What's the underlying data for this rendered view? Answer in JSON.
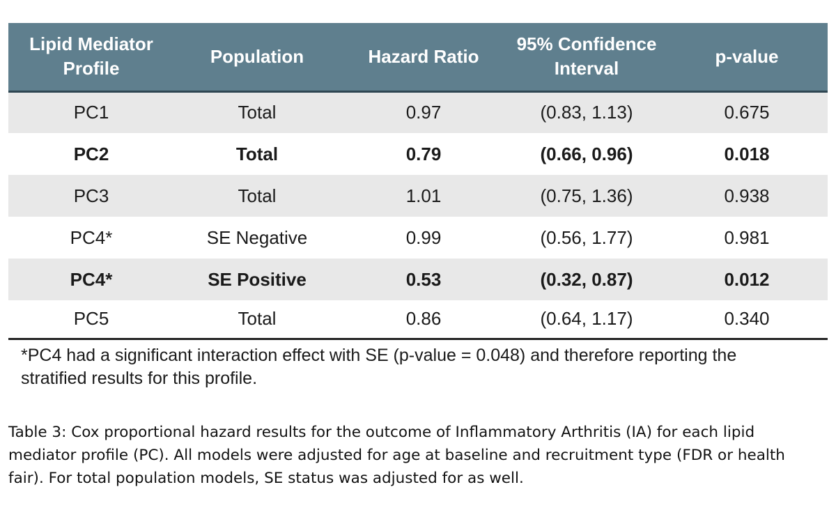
{
  "table": {
    "headers": [
      {
        "line1": "Lipid Mediator",
        "line2": "Profile"
      },
      {
        "line1": "Population",
        "line2": ""
      },
      {
        "line1": "Hazard Ratio",
        "line2": ""
      },
      {
        "line1": "95% Confidence",
        "line2": "Interval"
      },
      {
        "line1": "p-value",
        "line2": ""
      }
    ],
    "rows": [
      {
        "profile": "PC1",
        "population": "Total",
        "hazard_ratio": "0.97",
        "ci": "(0.83, 1.13)",
        "p_value": "0.675",
        "bold": false,
        "shaded": true
      },
      {
        "profile": "PC2",
        "population": "Total",
        "hazard_ratio": "0.79",
        "ci": "(0.66, 0.96)",
        "p_value": "0.018",
        "bold": true,
        "shaded": false
      },
      {
        "profile": "PC3",
        "population": "Total",
        "hazard_ratio": "1.01",
        "ci": "(0.75, 1.36)",
        "p_value": "0.938",
        "bold": false,
        "shaded": true
      },
      {
        "profile": "PC4*",
        "population": "SE Negative",
        "hazard_ratio": "0.99",
        "ci": "(0.56, 1.77)",
        "p_value": "0.981",
        "bold": false,
        "shaded": false
      },
      {
        "profile": "PC4*",
        "population": "SE Positive",
        "hazard_ratio": "0.53",
        "ci": "(0.32, 0.87)",
        "p_value": "0.012",
        "bold": true,
        "shaded": true
      },
      {
        "profile": "PC5",
        "population": "Total",
        "hazard_ratio": "0.86",
        "ci": "(0.64, 1.17)",
        "p_value": "0.340",
        "bold": false,
        "shaded": false
      }
    ]
  },
  "footnote": {
    "line1": "*PC4 had a significant interaction effect with SE (p-value = 0.048) and therefore reporting the",
    "line2": "stratified results for this profile."
  },
  "caption": {
    "line1": "Table 3: Cox proportional hazard results for the outcome of Inflammatory Arthritis (IA) for each lipid",
    "line2": "mediator profile (PC). All models were adjusted for age at baseline and recruitment type (FDR or health",
    "line3": "fair). For total population models, SE status was adjusted for as well."
  },
  "colors": {
    "header_background": "#5f7f8e",
    "header_text": "#ffffff",
    "shaded_row": "#e8e8e8"
  }
}
